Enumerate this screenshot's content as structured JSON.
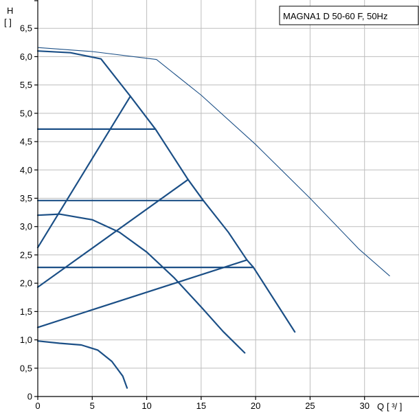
{
  "chart_data": {
    "type": "line",
    "title": "MAGNA1 D 50-60 F, 50Hz",
    "ylabel_main": "H",
    "ylabel_unit": "[ ]",
    "xlabel_main": "Q",
    "xlabel_unit": "[ ³/ ]",
    "xlim": [
      0,
      35
    ],
    "ylim": [
      0,
      7
    ],
    "grid": true,
    "x_ticks": [
      0,
      5,
      10,
      15,
      20,
      25,
      30
    ],
    "x_tick_labels": [
      "0",
      "5",
      "10",
      "15",
      "20",
      "25",
      "30"
    ],
    "y_ticks": [
      0,
      0.5,
      1.0,
      1.5,
      2.0,
      2.5,
      3.0,
      3.5,
      4.0,
      4.5,
      5.0,
      5.5,
      6.0,
      6.5
    ],
    "y_tick_labels": [
      "0",
      "0,5",
      "1,0",
      "1,5",
      "2,0",
      "2,5",
      "3,0",
      "3,5",
      "4,0",
      "4,5",
      "5,0",
      "5,5",
      "6,0",
      "6,5"
    ],
    "colors": {
      "curve": "#1b4f86",
      "grid": "#bdbdbd",
      "axis": "#000000"
    },
    "series": [
      {
        "style": "thin",
        "points": [
          [
            0,
            6.16
          ],
          [
            5,
            6.09
          ],
          [
            10.9,
            5.95
          ],
          [
            15,
            5.32
          ],
          [
            20,
            4.45
          ],
          [
            25,
            3.5
          ],
          [
            29.5,
            2.6
          ],
          [
            32.3,
            2.13
          ]
        ]
      },
      {
        "style": "thick",
        "points": [
          [
            0,
            6.1
          ],
          [
            3,
            6.07
          ],
          [
            5.8,
            5.96
          ],
          [
            8.5,
            5.3
          ],
          [
            10.8,
            4.72
          ],
          [
            13.8,
            3.83
          ],
          [
            15.2,
            3.46
          ],
          [
            17.5,
            2.9
          ],
          [
            19.2,
            2.41
          ],
          [
            19.8,
            2.28
          ],
          [
            23.6,
            1.14
          ]
        ]
      },
      {
        "style": "thick",
        "points": [
          [
            0,
            4.72
          ],
          [
            10.8,
            4.72
          ]
        ]
      },
      {
        "style": "thick",
        "points": [
          [
            0,
            3.46
          ],
          [
            15.2,
            3.46
          ]
        ]
      },
      {
        "style": "thick",
        "points": [
          [
            0,
            2.28
          ],
          [
            19.8,
            2.28
          ]
        ]
      },
      {
        "style": "thick",
        "points": [
          [
            0,
            2.63
          ],
          [
            8.5,
            5.3
          ]
        ]
      },
      {
        "style": "thick",
        "points": [
          [
            0,
            1.93
          ],
          [
            13.8,
            3.83
          ]
        ]
      },
      {
        "style": "thick",
        "points": [
          [
            0,
            1.22
          ],
          [
            19.2,
            2.41
          ]
        ]
      },
      {
        "style": "thick",
        "points": [
          [
            0,
            3.2
          ],
          [
            2,
            3.22
          ],
          [
            5,
            3.12
          ],
          [
            7.5,
            2.9
          ],
          [
            10,
            2.55
          ],
          [
            12.5,
            2.1
          ],
          [
            15,
            1.58
          ],
          [
            17,
            1.15
          ],
          [
            19,
            0.77
          ]
        ]
      },
      {
        "style": "thick",
        "points": [
          [
            0,
            0.98
          ],
          [
            2,
            0.94
          ],
          [
            4,
            0.91
          ],
          [
            5.5,
            0.82
          ],
          [
            6.8,
            0.62
          ],
          [
            7.8,
            0.36
          ],
          [
            8.2,
            0.15
          ]
        ]
      }
    ]
  }
}
